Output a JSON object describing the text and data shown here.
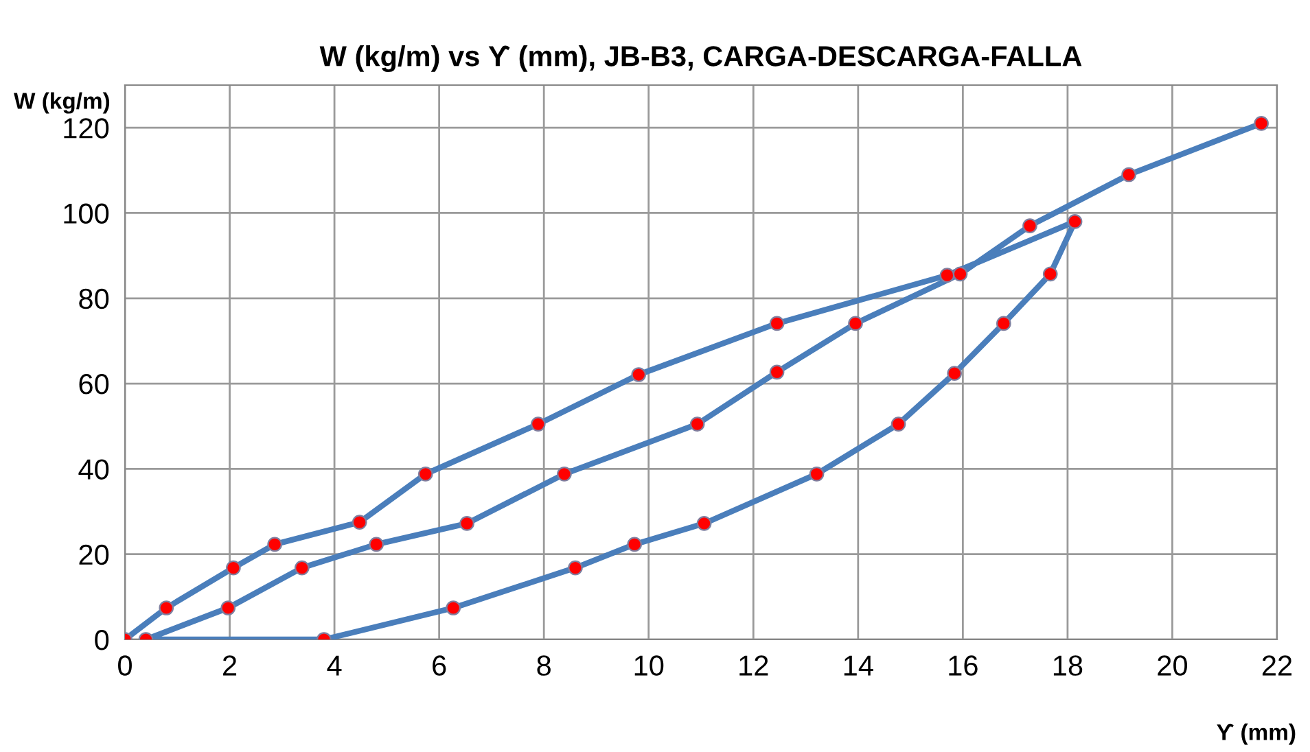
{
  "chart_data": {
    "type": "line",
    "title": "W (kg/m) vs ϒ (mm), JB-B3, CARGA-DESCARGA-FALLA",
    "xlabel": "ϒ (mm)",
    "ylabel": "W (kg/m)",
    "series": [
      {
        "color": "#4a7ebb",
        "x": [
          0,
          0.79,
          2.07,
          2.86,
          4.48,
          5.74,
          7.89,
          9.81,
          12.45,
          15.7,
          18.14,
          17.67,
          16.78,
          15.84,
          14.77,
          13.21,
          11.06,
          9.73,
          8.6,
          6.27,
          3.8,
          0.4,
          1.97,
          3.38,
          4.8,
          6.53,
          8.39,
          10.93,
          12.45,
          13.95,
          15.95,
          17.28,
          19.17,
          21.7
        ],
        "values": [
          0,
          7.4,
          16.8,
          22.3,
          27.5,
          38.8,
          50.5,
          62.1,
          74.1,
          85.4,
          98,
          85.7,
          74.1,
          62.4,
          50.5,
          38.8,
          27.2,
          22.3,
          16.8,
          7.4,
          0,
          0,
          7.4,
          16.8,
          22.3,
          27.2,
          38.8,
          50.5,
          62.7,
          74.1,
          85.7,
          97,
          109,
          121
        ]
      }
    ],
    "xlim": [
      0,
      22
    ],
    "xticks": [
      0,
      2,
      4,
      6,
      8,
      10,
      12,
      14,
      16,
      18,
      20,
      22
    ],
    "ylim": [
      0,
      130
    ],
    "yticks": [
      0,
      20,
      40,
      60,
      80,
      100,
      120
    ],
    "grid": true,
    "marker": "circle",
    "line_style": "solid"
  }
}
